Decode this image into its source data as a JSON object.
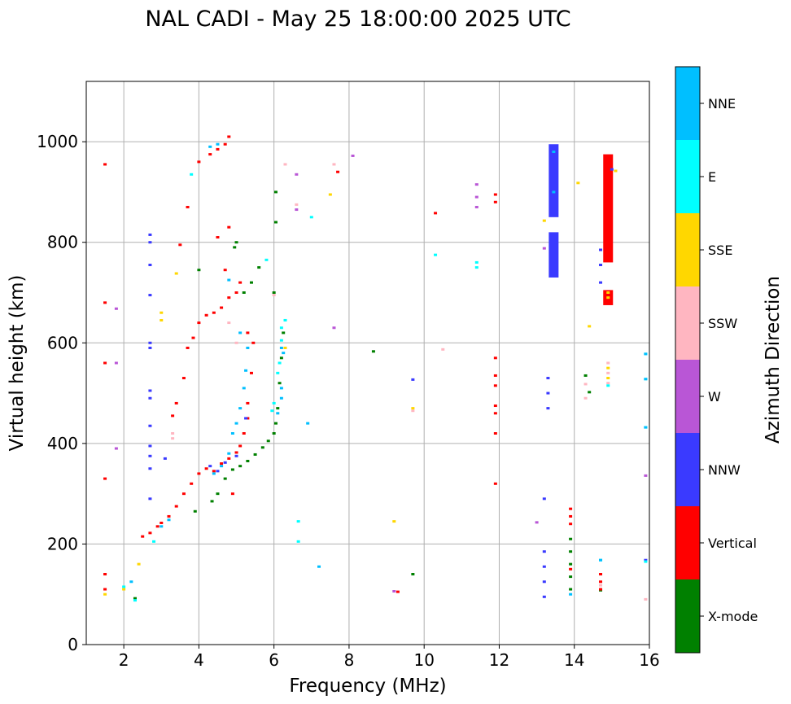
{
  "chart_data": {
    "type": "scatter",
    "title": "NAL CADI - May 25 18:00:00 2025 UTC",
    "xlabel": "Frequency (MHz)",
    "ylabel": "Virtual height (km)",
    "xlim": [
      1,
      16
    ],
    "ylim": [
      0,
      1120
    ],
    "xticks": [
      2,
      4,
      6,
      8,
      10,
      12,
      14,
      16
    ],
    "yticks": [
      0,
      200,
      400,
      600,
      800,
      1000
    ],
    "grid": true,
    "colorbar": {
      "label": "Azimuth Direction",
      "categories": [
        {
          "name": "X-mode",
          "color": "#008000"
        },
        {
          "name": "Vertical",
          "color": "#ff0000"
        },
        {
          "name": "NNW",
          "color": "#3a3aff"
        },
        {
          "name": "W",
          "color": "#b956d6"
        },
        {
          "name": "SSW",
          "color": "#ffb6c1"
        },
        {
          "name": "SSE",
          "color": "#ffd700"
        },
        {
          "name": "E",
          "color": "#00ffff"
        },
        {
          "name": "NNE",
          "color": "#00bfff"
        }
      ]
    },
    "series": [
      {
        "name": "X-mode",
        "color": "#008000",
        "points": [
          [
            2.3,
            92
          ],
          [
            3.9,
            265
          ],
          [
            4.35,
            285
          ],
          [
            4.5,
            300
          ],
          [
            4.7,
            330
          ],
          [
            4.9,
            348
          ],
          [
            5.1,
            355
          ],
          [
            5.3,
            365
          ],
          [
            5.5,
            378
          ],
          [
            5.7,
            392
          ],
          [
            5.85,
            405
          ],
          [
            6.0,
            420
          ],
          [
            6.05,
            440
          ],
          [
            6.1,
            470
          ],
          [
            6.15,
            520
          ],
          [
            6.2,
            570
          ],
          [
            6.25,
            620
          ],
          [
            6.3,
            645
          ],
          [
            6.0,
            700
          ],
          [
            6.05,
            840
          ],
          [
            6.05,
            900
          ],
          [
            5.2,
            700
          ],
          [
            5.4,
            720
          ],
          [
            5.6,
            750
          ],
          [
            8.65,
            583
          ],
          [
            9.7,
            140
          ],
          [
            13.9,
            210
          ],
          [
            13.9,
            185
          ],
          [
            13.9,
            160
          ],
          [
            13.9,
            135
          ],
          [
            13.9,
            110
          ],
          [
            14.3,
            535
          ],
          [
            14.4,
            502
          ],
          [
            14.7,
            108
          ],
          [
            4.0,
            745
          ],
          [
            5.0,
            800
          ],
          [
            4.95,
            790
          ]
        ]
      },
      {
        "name": "Vertical",
        "color": "#ff0000",
        "points": [
          [
            1.5,
            955
          ],
          [
            1.5,
            680
          ],
          [
            1.5,
            560
          ],
          [
            1.5,
            330
          ],
          [
            1.5,
            140
          ],
          [
            1.5,
            110
          ],
          [
            2.5,
            215
          ],
          [
            2.7,
            222
          ],
          [
            2.9,
            235
          ],
          [
            3.0,
            242
          ],
          [
            3.2,
            255
          ],
          [
            3.4,
            275
          ],
          [
            3.6,
            300
          ],
          [
            3.8,
            320
          ],
          [
            4.0,
            340
          ],
          [
            4.2,
            350
          ],
          [
            4.4,
            345
          ],
          [
            4.6,
            360
          ],
          [
            4.8,
            370
          ],
          [
            5.0,
            382
          ],
          [
            5.1,
            395
          ],
          [
            5.2,
            420
          ],
          [
            5.3,
            450
          ],
          [
            5.3,
            480
          ],
          [
            5.4,
            540
          ],
          [
            5.45,
            600
          ],
          [
            5.3,
            620
          ],
          [
            4.9,
            300
          ],
          [
            3.3,
            455
          ],
          [
            3.4,
            480
          ],
          [
            3.6,
            530
          ],
          [
            3.7,
            590
          ],
          [
            3.85,
            610
          ],
          [
            4.0,
            640
          ],
          [
            4.2,
            655
          ],
          [
            4.4,
            660
          ],
          [
            4.6,
            670
          ],
          [
            4.8,
            690
          ],
          [
            5.0,
            700
          ],
          [
            5.1,
            720
          ],
          [
            4.7,
            745
          ],
          [
            3.7,
            870
          ],
          [
            4.0,
            960
          ],
          [
            4.3,
            975
          ],
          [
            4.5,
            985
          ],
          [
            4.7,
            995
          ],
          [
            4.8,
            1010
          ],
          [
            4.5,
            810
          ],
          [
            4.8,
            830
          ],
          [
            3.5,
            795
          ],
          [
            7.7,
            940
          ],
          [
            10.3,
            858
          ],
          [
            11.9,
            895
          ],
          [
            11.9,
            880
          ],
          [
            11.9,
            570
          ],
          [
            11.9,
            535
          ],
          [
            11.9,
            515
          ],
          [
            11.9,
            475
          ],
          [
            11.9,
            460
          ],
          [
            11.9,
            420
          ],
          [
            11.9,
            320
          ],
          [
            13.9,
            270
          ],
          [
            13.9,
            255
          ],
          [
            13.9,
            240
          ],
          [
            13.9,
            150
          ],
          [
            14.7,
            140
          ],
          [
            14.7,
            125
          ],
          [
            14.7,
            110
          ],
          [
            9.3,
            105
          ]
        ]
      },
      {
        "name": "NNW",
        "color": "#3a3aff",
        "points": [
          [
            2.7,
            815
          ],
          [
            2.7,
            800
          ],
          [
            2.7,
            755
          ],
          [
            2.7,
            695
          ],
          [
            2.7,
            600
          ],
          [
            2.7,
            590
          ],
          [
            2.7,
            505
          ],
          [
            2.7,
            490
          ],
          [
            2.7,
            435
          ],
          [
            2.7,
            395
          ],
          [
            2.7,
            375
          ],
          [
            2.7,
            350
          ],
          [
            2.7,
            290
          ],
          [
            3.1,
            370
          ],
          [
            4.3,
            355
          ],
          [
            4.5,
            345
          ],
          [
            4.7,
            362
          ],
          [
            5.0,
            375
          ],
          [
            5.25,
            450
          ],
          [
            13.45,
            960
          ],
          [
            13.45,
            920
          ],
          [
            13.45,
            880
          ],
          [
            13.45,
            810
          ],
          [
            13.45,
            760
          ],
          [
            13.45,
            740
          ],
          [
            14.7,
            785
          ],
          [
            14.7,
            755
          ],
          [
            14.7,
            720
          ],
          [
            13.2,
            290
          ],
          [
            13.2,
            185
          ],
          [
            13.2,
            155
          ],
          [
            13.2,
            125
          ],
          [
            13.2,
            95
          ],
          [
            13.3,
            530
          ],
          [
            13.3,
            500
          ],
          [
            13.3,
            470
          ],
          [
            15.9,
            168
          ],
          [
            9.7,
            527
          ],
          [
            15.0,
            945
          ]
        ]
      },
      {
        "name": "W",
        "color": "#b956d6",
        "points": [
          [
            1.8,
            560
          ],
          [
            1.8,
            390
          ],
          [
            1.8,
            668
          ],
          [
            7.6,
            630
          ],
          [
            8.1,
            972
          ],
          [
            11.4,
            915
          ],
          [
            11.4,
            890
          ],
          [
            11.4,
            870
          ],
          [
            13.2,
            788
          ],
          [
            13.0,
            243
          ],
          [
            15.9,
            336
          ],
          [
            9.2,
            106
          ],
          [
            6.6,
            935
          ],
          [
            6.6,
            865
          ]
        ]
      },
      {
        "name": "SSW",
        "color": "#ffb6c1",
        "points": [
          [
            3.3,
            420
          ],
          [
            3.3,
            410
          ],
          [
            4.8,
            640
          ],
          [
            5.0,
            600
          ],
          [
            6.0,
            695
          ],
          [
            6.3,
            955
          ],
          [
            6.6,
            875
          ],
          [
            7.6,
            955
          ],
          [
            10.5,
            587
          ],
          [
            9.7,
            465
          ],
          [
            14.3,
            518
          ],
          [
            14.3,
            490
          ],
          [
            14.9,
            560
          ],
          [
            14.9,
            540
          ],
          [
            14.9,
            520
          ],
          [
            15.9,
            90
          ],
          [
            14.7,
            118
          ]
        ]
      },
      {
        "name": "SSE",
        "color": "#ffd700",
        "points": [
          [
            1.5,
            100
          ],
          [
            2.0,
            110
          ],
          [
            2.4,
            160
          ],
          [
            3.0,
            660
          ],
          [
            3.0,
            645
          ],
          [
            3.4,
            738
          ],
          [
            6.3,
            590
          ],
          [
            7.5,
            895
          ],
          [
            9.2,
            245
          ],
          [
            9.7,
            470
          ],
          [
            13.2,
            843
          ],
          [
            14.1,
            918
          ],
          [
            14.4,
            633
          ],
          [
            14.9,
            550
          ],
          [
            14.9,
            530
          ],
          [
            14.9,
            700
          ],
          [
            14.9,
            690
          ],
          [
            15.1,
            942
          ]
        ]
      },
      {
        "name": "E",
        "color": "#00ffff",
        "points": [
          [
            2.0,
            115
          ],
          [
            2.3,
            88
          ],
          [
            2.8,
            205
          ],
          [
            3.8,
            935
          ],
          [
            6.2,
            630
          ],
          [
            6.3,
            645
          ],
          [
            6.2,
            605
          ],
          [
            6.15,
            560
          ],
          [
            6.1,
            540
          ],
          [
            6.0,
            480
          ],
          [
            5.95,
            465
          ],
          [
            6.65,
            245
          ],
          [
            6.65,
            205
          ],
          [
            7.0,
            850
          ],
          [
            10.3,
            775
          ],
          [
            11.4,
            760
          ],
          [
            11.4,
            750
          ],
          [
            14.7,
            168
          ],
          [
            14.9,
            515
          ],
          [
            15.9,
            578
          ],
          [
            15.9,
            528
          ],
          [
            15.9,
            432
          ],
          [
            15.9,
            165
          ],
          [
            5.8,
            765
          ]
        ]
      },
      {
        "name": "NNE",
        "color": "#00bfff",
        "points": [
          [
            2.2,
            125
          ],
          [
            3.0,
            235
          ],
          [
            3.2,
            248
          ],
          [
            4.3,
            990
          ],
          [
            4.5,
            995
          ],
          [
            4.4,
            340
          ],
          [
            4.6,
            355
          ],
          [
            4.8,
            380
          ],
          [
            4.9,
            420
          ],
          [
            5.0,
            440
          ],
          [
            5.1,
            470
          ],
          [
            5.2,
            510
          ],
          [
            5.25,
            545
          ],
          [
            5.3,
            590
          ],
          [
            5.1,
            620
          ],
          [
            4.8,
            725
          ],
          [
            6.2,
            590
          ],
          [
            6.25,
            580
          ],
          [
            6.2,
            510
          ],
          [
            6.2,
            490
          ],
          [
            6.1,
            460
          ],
          [
            6.9,
            440
          ],
          [
            7.2,
            155
          ],
          [
            13.45,
            980
          ],
          [
            13.45,
            900
          ],
          [
            13.9,
            100
          ],
          [
            14.7,
            168
          ],
          [
            15.9,
            528
          ],
          [
            15.9,
            432
          ],
          [
            15.9,
            578
          ]
        ]
      }
    ],
    "bands": [
      {
        "name": "NNW",
        "x": 13.45,
        "y_from": 850,
        "y_to": 995
      },
      {
        "name": "NNW",
        "x": 13.45,
        "y_from": 730,
        "y_to": 820
      },
      {
        "name": "Vertical",
        "x": 14.9,
        "y_from": 760,
        "y_to": 975
      },
      {
        "name": "Vertical",
        "x": 14.9,
        "y_from": 675,
        "y_to": 705
      }
    ]
  }
}
